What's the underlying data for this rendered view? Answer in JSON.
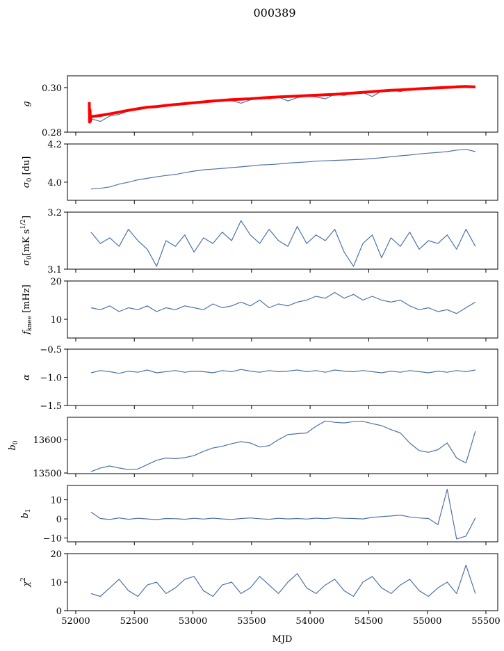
{
  "chart_data": {
    "type": "line",
    "title": "000389",
    "xlabel": "MJD",
    "xlim": [
      51929,
      55601
    ],
    "xticks": [
      52000,
      52500,
      53000,
      53500,
      54000,
      54500,
      55000,
      55500
    ],
    "x": [
      52130,
      52210,
      52290,
      52370,
      52450,
      52530,
      52610,
      52690,
      52770,
      52850,
      52930,
      53010,
      53090,
      53170,
      53250,
      53330,
      53410,
      53490,
      53570,
      53650,
      53730,
      53810,
      53890,
      53970,
      54050,
      54130,
      54210,
      54290,
      54370,
      54450,
      54530,
      54610,
      54690,
      54770,
      54850,
      54930,
      55010,
      55090,
      55170,
      55250,
      55330,
      55410
    ],
    "colors": {
      "series": "#4c72a8",
      "fit": "#ff0000"
    },
    "panels": [
      {
        "name": "g",
        "ylabel": {
          "main": "g",
          "sub": "",
          "sup": "",
          "rest": ""
        },
        "ylim": [
          0.28,
          0.3053
        ],
        "yticks": [
          0.28,
          0.3
        ],
        "ytick_labels": [
          "0.28",
          "0.30"
        ],
        "series": [
          {
            "name": "gain",
            "color": "#4c72a8",
            "values": [
              0.286,
              0.2848,
              0.2872,
              0.288,
              0.2895,
              0.2905,
              0.291,
              0.2912,
              0.292,
              0.2922,
              0.2928,
              0.2935,
              0.2938,
              0.294,
              0.2944,
              0.2942,
              0.293,
              0.2945,
              0.2952,
              0.295,
              0.2958,
              0.294,
              0.2955,
              0.2962,
              0.2958,
              0.295,
              0.297,
              0.2965,
              0.2975,
              0.2978,
              0.296,
              0.2985,
              0.299,
              0.2982,
              0.2995,
              0.2998,
              0.3,
              0.3002,
              0.2998,
              0.3008,
              0.301,
              0.3004
            ]
          },
          {
            "name": "gain-model",
            "color": "#ff0000",
            "x": [
              52115,
              52118,
              52122,
              52126,
              52130,
              52210,
              52290,
              52370,
              52450,
              52530,
              52610,
              52690,
              52770,
              52850,
              52930,
              53010,
              53090,
              53170,
              53250,
              53330,
              53410,
              53490,
              53570,
              53650,
              53730,
              53810,
              53890,
              53970,
              54050,
              54130,
              54210,
              54290,
              54370,
              54450,
              54530,
              54610,
              54690,
              54770,
              54850,
              54930,
              55010,
              55090,
              55170,
              55250,
              55330,
              55410
            ],
            "values": [
              0.2935,
              0.2845,
              0.29,
              0.285,
              0.287,
              0.2875,
              0.2882,
              0.289,
              0.2898,
              0.2905,
              0.2912,
              0.2915,
              0.292,
              0.2924,
              0.2928,
              0.2932,
              0.2936,
              0.294,
              0.2943,
              0.2946,
              0.2948,
              0.295,
              0.2953,
              0.2956,
              0.2958,
              0.296,
              0.2962,
              0.2964,
              0.2966,
              0.2968,
              0.297,
              0.2973,
              0.2976,
              0.2979,
              0.2982,
              0.2985,
              0.2988,
              0.299,
              0.2992,
              0.2995,
              0.2997,
              0.2999,
              0.3001,
              0.3003,
              0.3005,
              0.3003
            ]
          }
        ]
      },
      {
        "name": "sigma0-du",
        "ylabel": {
          "main": "σ",
          "sub": "0",
          "sup": "",
          "rest": " [du]"
        },
        "ylim": [
          3.905,
          4.2
        ],
        "yticks": [
          4.0,
          4.2
        ],
        "ytick_labels": [
          "4.0",
          "4.2"
        ],
        "series": [
          {
            "name": "sigma0",
            "color": "#4c72a8",
            "values": [
              3.964,
              3.968,
              3.975,
              3.99,
              4.0,
              4.012,
              4.02,
              4.028,
              4.035,
              4.04,
              4.05,
              4.058,
              4.065,
              4.068,
              4.072,
              4.076,
              4.08,
              4.085,
              4.09,
              4.092,
              4.095,
              4.1,
              4.103,
              4.106,
              4.11,
              4.112,
              4.114,
              4.116,
              4.118,
              4.12,
              4.124,
              4.128,
              4.133,
              4.138,
              4.142,
              4.148,
              4.152,
              4.156,
              4.16,
              4.168,
              4.172,
              4.16
            ]
          }
        ]
      },
      {
        "name": "sigma0-mk",
        "ylabel": {
          "main": "σ",
          "sub": "0",
          "sup": "1/2",
          "rest": "[mK s",
          "close": "]"
        },
        "ylim": [
          3.1,
          3.2
        ],
        "yticks": [
          3.1,
          3.2
        ],
        "ytick_labels": [
          "3.1",
          "3.2"
        ],
        "series": [
          {
            "name": "sigma0-temp",
            "color": "#4c72a8",
            "values": [
              3.165,
              3.145,
              3.155,
              3.14,
              3.17,
              3.15,
              3.135,
              3.105,
              3.15,
              3.14,
              3.16,
              3.13,
              3.155,
              3.145,
              3.165,
              3.15,
              3.185,
              3.16,
              3.145,
              3.17,
              3.15,
              3.14,
              3.175,
              3.145,
              3.16,
              3.15,
              3.17,
              3.13,
              3.105,
              3.145,
              3.16,
              3.12,
              3.155,
              3.14,
              3.165,
              3.135,
              3.15,
              3.145,
              3.16,
              3.135,
              3.17,
              3.14
            ]
          }
        ]
      },
      {
        "name": "fknee",
        "ylabel": {
          "main": "f",
          "sub": "knee",
          "sup": "",
          "rest": " [mHz]"
        },
        "ylim": [
          5.1,
          20
        ],
        "yticks": [
          10,
          20
        ],
        "ytick_labels": [
          "10",
          "20"
        ],
        "series": [
          {
            "name": "fknee",
            "color": "#4c72a8",
            "values": [
              13.0,
              12.5,
              13.5,
              12.0,
              13.0,
              12.5,
              13.5,
              12.0,
              13.0,
              12.5,
              13.5,
              13.0,
              12.5,
              14.0,
              13.0,
              13.5,
              14.5,
              13.5,
              15.0,
              13.0,
              14.0,
              13.5,
              14.5,
              15.0,
              16.0,
              15.5,
              17.0,
              15.5,
              16.5,
              15.0,
              16.0,
              15.0,
              14.5,
              15.0,
              13.5,
              12.5,
              13.0,
              12.0,
              12.5,
              11.5,
              13.0,
              14.5
            ]
          }
        ]
      },
      {
        "name": "alpha",
        "ylabel": {
          "main": "α",
          "sub": "",
          "sup": "",
          "rest": ""
        },
        "ylim": [
          -1.5,
          -0.5
        ],
        "yticks": [
          -1.5,
          -1.0,
          -0.5
        ],
        "ytick_labels": [
          "−1.5",
          "−1.0",
          "−0.5"
        ],
        "series": [
          {
            "name": "alpha",
            "color": "#4c72a8",
            "values": [
              -0.92,
              -0.88,
              -0.9,
              -0.93,
              -0.89,
              -0.91,
              -0.87,
              -0.92,
              -0.9,
              -0.88,
              -0.91,
              -0.89,
              -0.9,
              -0.92,
              -0.88,
              -0.9,
              -0.86,
              -0.89,
              -0.91,
              -0.88,
              -0.9,
              -0.89,
              -0.87,
              -0.9,
              -0.88,
              -0.91,
              -0.87,
              -0.89,
              -0.9,
              -0.88,
              -0.9,
              -0.92,
              -0.89,
              -0.91,
              -0.88,
              -0.9,
              -0.92,
              -0.89,
              -0.91,
              -0.88,
              -0.9,
              -0.87
            ]
          }
        ]
      },
      {
        "name": "b0",
        "ylabel": {
          "main": "b",
          "sub": "0",
          "sup": "",
          "rest": ""
        },
        "ylim": [
          13498,
          13667
        ],
        "yticks": [
          13500,
          13600
        ],
        "ytick_labels": [
          "13500",
          "13600"
        ],
        "series": [
          {
            "name": "b0",
            "color": "#4c72a8",
            "values": [
              13504,
              13515,
              13521,
              13515,
              13510,
              13512,
              13525,
              13538,
              13545,
              13543,
              13546,
              13552,
              13565,
              13575,
              13580,
              13588,
              13594,
              13590,
              13578,
              13582,
              13600,
              13615,
              13618,
              13620,
              13640,
              13656,
              13652,
              13650,
              13654,
              13655,
              13648,
              13642,
              13630,
              13620,
              13590,
              13567,
              13562,
              13570,
              13590,
              13545,
              13530,
              13625
            ]
          }
        ]
      },
      {
        "name": "b1",
        "ylabel": {
          "main": "b",
          "sub": "1",
          "sup": "",
          "rest": ""
        },
        "ylim": [
          -12,
          17.5
        ],
        "yticks": [
          -10,
          0,
          10
        ],
        "ytick_labels": [
          "−10",
          "0",
          "10"
        ],
        "series": [
          {
            "name": "b1",
            "color": "#4c72a8",
            "values": [
              3.5,
              0.2,
              -0.3,
              0.5,
              -0.2,
              0.3,
              0.0,
              -0.4,
              0.2,
              0.1,
              -0.2,
              0.3,
              -0.1,
              0.4,
              0.0,
              -0.3,
              0.2,
              0.5,
              0.1,
              -0.2,
              0.3,
              0.0,
              0.2,
              -0.1,
              0.4,
              0.1,
              0.6,
              0.3,
              0.2,
              0.0,
              0.8,
              1.2,
              1.5,
              2.0,
              1.0,
              0.5,
              0.2,
              -3.0,
              15.5,
              -10.5,
              -9.0,
              0.5
            ]
          }
        ]
      },
      {
        "name": "chi2",
        "ylabel": {
          "main": "χ",
          "sub": "",
          "sup": "2",
          "rest": ""
        },
        "ylim": [
          0,
          20
        ],
        "yticks": [
          0,
          10,
          20
        ],
        "ytick_labels": [
          "0",
          "10",
          "20"
        ],
        "series": [
          {
            "name": "chi2",
            "color": "#4c72a8",
            "values": [
              6,
              5,
              8,
              11,
              7,
              5,
              9,
              10,
              6,
              8,
              11,
              12,
              7,
              5,
              9,
              10,
              6,
              8,
              12,
              9,
              6,
              10,
              13,
              8,
              6,
              9,
              11,
              7,
              5,
              10,
              12,
              8,
              6,
              9,
              11,
              7,
              5,
              8,
              10,
              6,
              16,
              6
            ]
          }
        ]
      }
    ]
  }
}
